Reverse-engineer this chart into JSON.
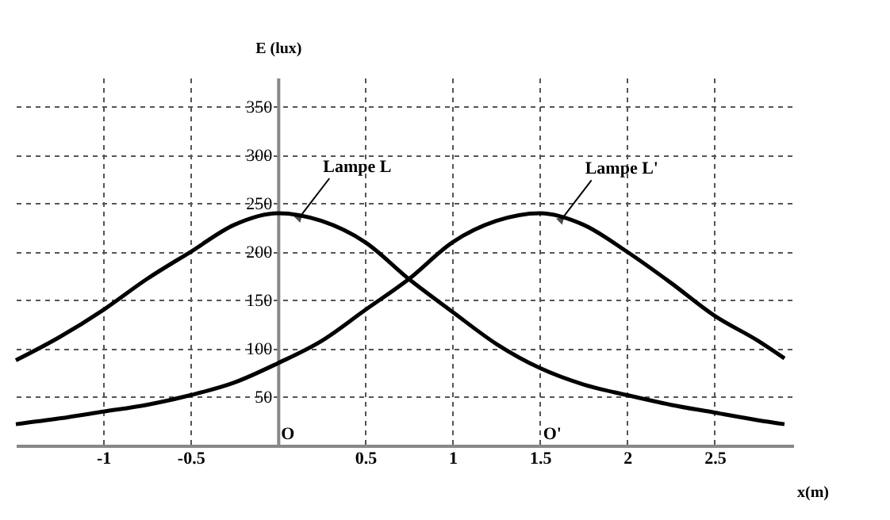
{
  "chart_data": {
    "type": "line",
    "xlabel": "x(m)",
    "ylabel": "E (lux)",
    "x": [
      -1.5,
      -1.25,
      -1,
      -0.75,
      -0.5,
      -0.25,
      0,
      0.25,
      0.5,
      0.75,
      1,
      1.25,
      1.5,
      1.75,
      2,
      2.25,
      2.5,
      2.75,
      2.9
    ],
    "series": [
      {
        "name": "Lampe L",
        "color": "#000000",
        "values": [
          88,
          112,
          140,
          172,
          200,
          228,
          240,
          232,
          210,
          172,
          138,
          105,
          80,
          63,
          52,
          42,
          34,
          26,
          22
        ]
      },
      {
        "name": "Lampe L'",
        "color": "#000000",
        "values": [
          22,
          28,
          35,
          42,
          52,
          65,
          85,
          108,
          140,
          172,
          210,
          232,
          240,
          228,
          200,
          168,
          134,
          108,
          90
        ]
      }
    ],
    "xlim": [
      -1.5,
      2.95
    ],
    "ylim": [
      0,
      380
    ],
    "xticks": [
      -1,
      -0.5,
      0.5,
      1,
      1.5,
      2,
      2.5
    ],
    "yticks": [
      50,
      100,
      150,
      200,
      250,
      300,
      350
    ],
    "grid": true,
    "legend": false,
    "marker": "none",
    "line_style": "solid",
    "annotations": [
      "O",
      "O'"
    ]
  }
}
